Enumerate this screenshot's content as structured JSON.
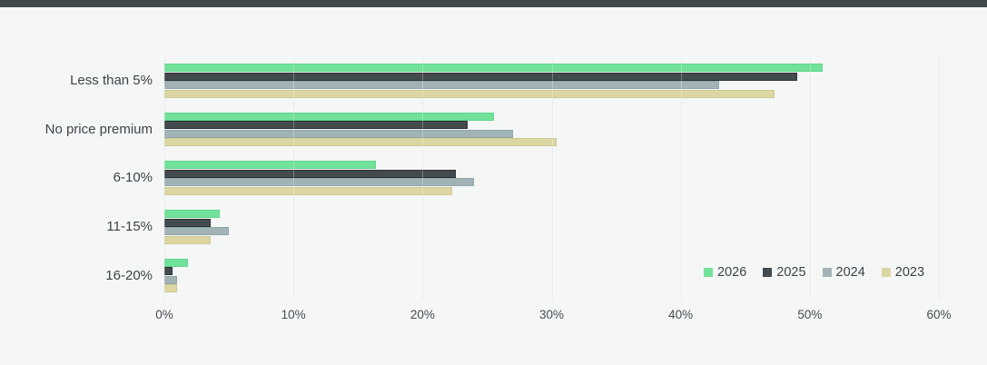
{
  "chart_data": {
    "type": "bar",
    "orientation": "horizontal",
    "title": "",
    "categories": [
      "Less than 5%",
      "No price premium",
      "6-10%",
      "11-15%",
      "16-20%"
    ],
    "series": [
      {
        "name": "2026",
        "color": "#72e19a",
        "border": "#5fd68c",
        "values": [
          51,
          25.5,
          16.4,
          4.3,
          1.8
        ]
      },
      {
        "name": "2025",
        "color": "#434b4f",
        "border": "#2a3135",
        "values": [
          49,
          23.5,
          22.6,
          3.6,
          0.6
        ]
      },
      {
        "name": "2024",
        "color": "#a2b3b6",
        "border": "#8fa6aa",
        "values": [
          43,
          27,
          24,
          5,
          1
        ]
      },
      {
        "name": "2023",
        "color": "#dcd7a2",
        "border": "#cec992",
        "values": [
          47.3,
          30.4,
          22.3,
          3.6,
          1
        ]
      }
    ],
    "xlabel": "",
    "ylabel": "",
    "xlim": [
      0,
      60
    ],
    "xticks": [
      {
        "value": 0,
        "label": "0%"
      },
      {
        "value": 10,
        "label": "10%"
      },
      {
        "value": 20,
        "label": "20%"
      },
      {
        "value": 30,
        "label": "30%"
      },
      {
        "value": 40,
        "label": "40%"
      },
      {
        "value": 50,
        "label": "50%"
      },
      {
        "value": 60,
        "label": "60%"
      }
    ],
    "grid": true,
    "legend_position": "bottom-right"
  },
  "colors": {
    "background": "#f5f6f6",
    "top_strip": "#40494c",
    "gridline": "#e2e6e5",
    "text": "#3c4549"
  }
}
